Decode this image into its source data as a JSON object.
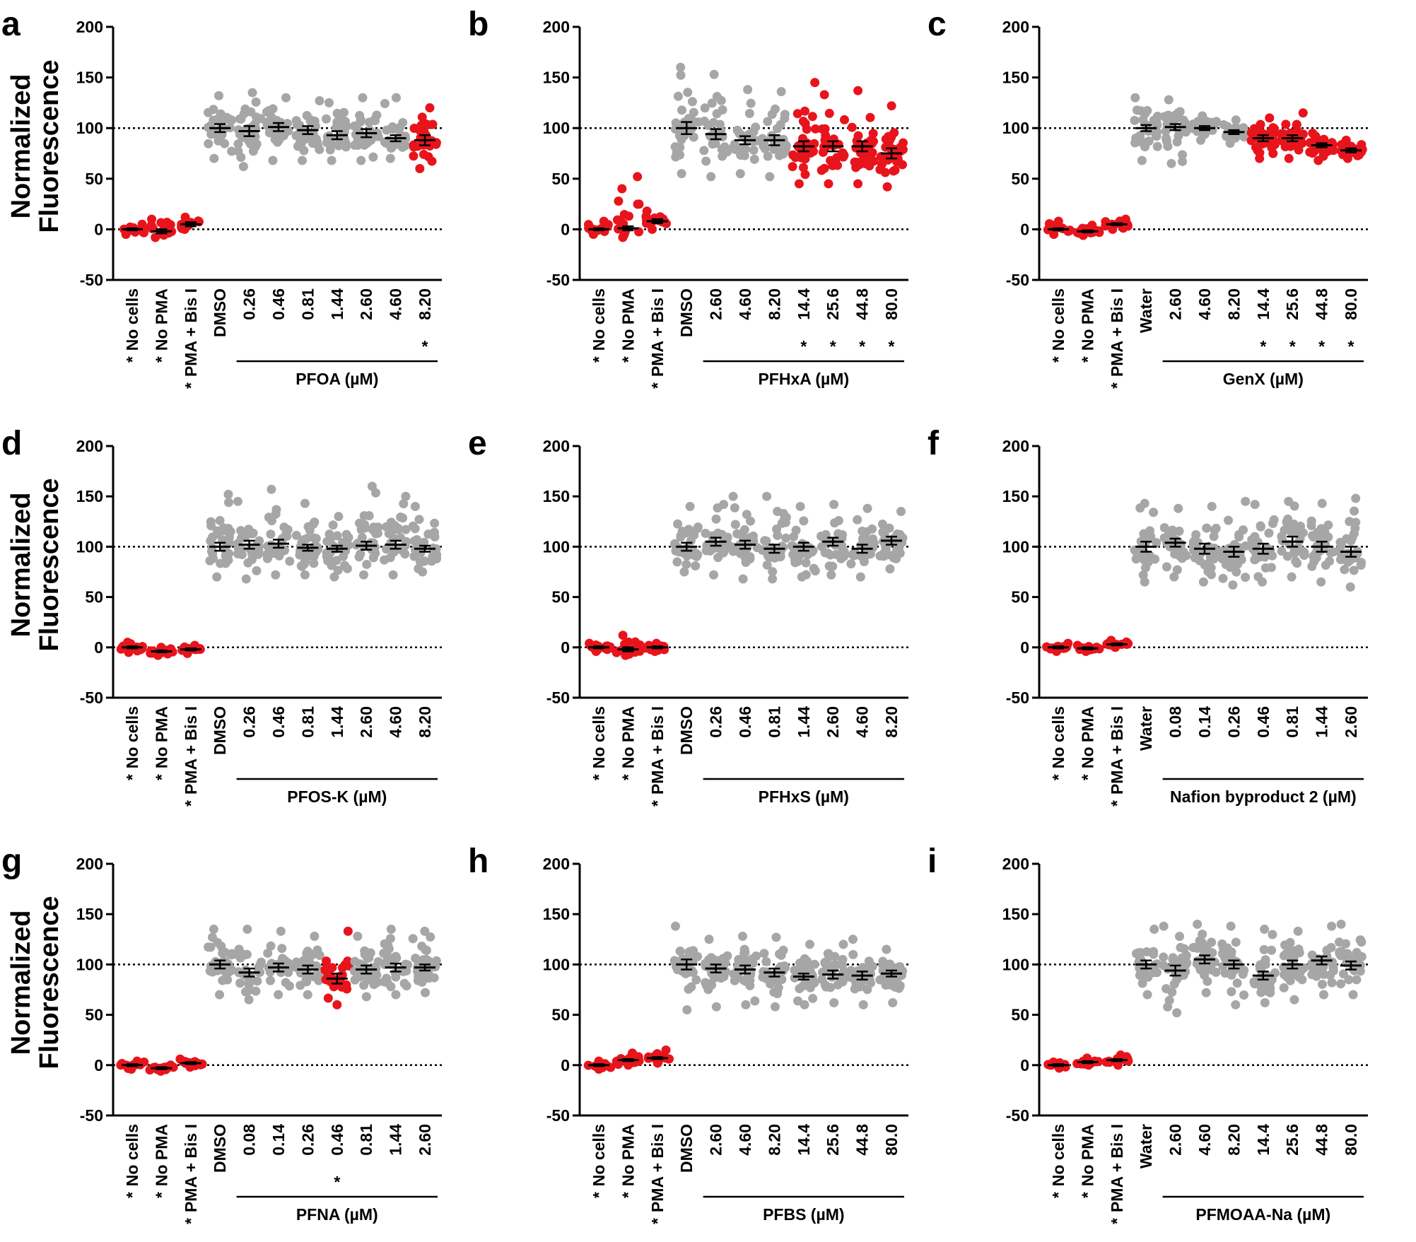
{
  "chart_data": [
    {
      "type": "scatter",
      "panel": "a",
      "title": "",
      "ylabel": [
        "Normalized",
        "Fluorescence"
      ],
      "show_ylabel": true,
      "ylim": [
        -50,
        200
      ],
      "yticks": [
        "-50",
        "0",
        "50",
        "100",
        "150",
        "200"
      ],
      "reflines": [
        0,
        100
      ],
      "group_label": "PFOA (µM)",
      "categories": [
        "No cells",
        "No PMA",
        "PMA + Bis I",
        "DMSO",
        "0.26",
        "0.46",
        "0.81",
        "1.44",
        "2.60",
        "4.60",
        "8.20"
      ],
      "significant": [
        true,
        true,
        true,
        false,
        false,
        false,
        false,
        false,
        false,
        false,
        true
      ],
      "red_points": [
        true,
        true,
        true,
        false,
        false,
        false,
        false,
        false,
        false,
        false,
        true
      ],
      "means": [
        0,
        -2,
        5,
        100,
        97,
        101,
        98,
        93,
        95,
        90,
        88
      ],
      "mins": [
        -5,
        -8,
        0,
        70,
        62,
        68,
        68,
        68,
        68,
        70,
        60
      ],
      "maxs": [
        5,
        10,
        12,
        132,
        135,
        130,
        127,
        125,
        130,
        130,
        120
      ],
      "sems": [
        1,
        2,
        2,
        4,
        5,
        4,
        4,
        4,
        4,
        3,
        5
      ]
    },
    {
      "type": "scatter",
      "panel": "b",
      "title": "",
      "ylabel": [
        "Normalized",
        "Fluorescence"
      ],
      "show_ylabel": false,
      "ylim": [
        -50,
        200
      ],
      "yticks": [
        "-50",
        "0",
        "50",
        "100",
        "150",
        "200"
      ],
      "reflines": [
        0,
        100
      ],
      "group_label": "PFHxA (µM)",
      "categories": [
        "No cells",
        "No PMA",
        "PMA + Bis I",
        "DMSO",
        "2.60",
        "4.60",
        "8.20",
        "14.4",
        "25.6",
        "44.8",
        "80.0"
      ],
      "significant": [
        true,
        true,
        true,
        false,
        false,
        false,
        false,
        true,
        true,
        true,
        true
      ],
      "red_points": [
        true,
        true,
        true,
        false,
        false,
        false,
        false,
        true,
        true,
        true,
        true
      ],
      "means": [
        0,
        1,
        8,
        100,
        94,
        88,
        88,
        82,
        82,
        82,
        75
      ],
      "mins": [
        -5,
        -8,
        0,
        55,
        52,
        55,
        52,
        45,
        45,
        45,
        42
      ],
      "maxs": [
        8,
        52,
        18,
        160,
        153,
        138,
        136,
        145,
        133,
        137,
        122
      ],
      "sems": [
        1,
        2,
        2,
        6,
        5,
        4,
        5,
        5,
        5,
        5,
        5
      ]
    },
    {
      "type": "scatter",
      "panel": "c",
      "title": "",
      "ylabel": [
        "Normalized",
        "Fluorescence"
      ],
      "show_ylabel": false,
      "ylim": [
        -50,
        200
      ],
      "yticks": [
        "-50",
        "0",
        "50",
        "100",
        "150",
        "200"
      ],
      "reflines": [
        0,
        100
      ],
      "group_label": "GenX (µM)",
      "categories": [
        "No cells",
        "No PMA",
        "PMA + Bis I",
        "Water",
        "2.60",
        "4.60",
        "8.20",
        "14.4",
        "25.6",
        "44.8",
        "80.0"
      ],
      "significant": [
        true,
        true,
        true,
        false,
        false,
        false,
        false,
        true,
        true,
        true,
        true
      ],
      "red_points": [
        true,
        true,
        true,
        false,
        false,
        false,
        false,
        true,
        true,
        true,
        true
      ],
      "means": [
        0,
        -2,
        5,
        100,
        101,
        100,
        96,
        90,
        90,
        83,
        78
      ],
      "mins": [
        -5,
        -6,
        0,
        68,
        65,
        88,
        85,
        70,
        70,
        68,
        70
      ],
      "maxs": [
        8,
        4,
        10,
        130,
        128,
        112,
        108,
        110,
        115,
        95,
        88
      ],
      "sems": [
        1,
        1,
        1,
        3,
        3,
        2,
        2,
        3,
        3,
        2,
        2
      ]
    },
    {
      "type": "scatter",
      "panel": "d",
      "title": "",
      "ylabel": [
        "Normalized",
        "Fluorescence"
      ],
      "show_ylabel": true,
      "ylim": [
        -50,
        200
      ],
      "yticks": [
        "-50",
        "0",
        "50",
        "100",
        "150",
        "200"
      ],
      "reflines": [
        0,
        100
      ],
      "group_label": "PFOS-K (µM)",
      "categories": [
        "No cells",
        "No PMA",
        "PMA + Bis I",
        "DMSO",
        "0.26",
        "0.46",
        "0.81",
        "1.44",
        "2.60",
        "4.60",
        "8.20"
      ],
      "significant": [
        true,
        true,
        true,
        false,
        false,
        false,
        false,
        false,
        false,
        false,
        false
      ],
      "red_points": [
        true,
        true,
        true,
        false,
        false,
        false,
        false,
        false,
        false,
        false,
        false
      ],
      "means": [
        0,
        -4,
        -2,
        100,
        102,
        103,
        99,
        98,
        101,
        102,
        98
      ],
      "mins": [
        -5,
        -8,
        -6,
        70,
        68,
        72,
        72,
        70,
        72,
        72,
        75
      ],
      "maxs": [
        5,
        0,
        2,
        152,
        145,
        157,
        143,
        130,
        160,
        150,
        140
      ],
      "sems": [
        1,
        1,
        1,
        4,
        4,
        4,
        3,
        3,
        4,
        4,
        3
      ]
    },
    {
      "type": "scatter",
      "panel": "e",
      "title": "",
      "ylabel": [
        "Normalized",
        "Fluorescence"
      ],
      "show_ylabel": false,
      "ylim": [
        -50,
        200
      ],
      "yticks": [
        "-50",
        "0",
        "50",
        "100",
        "150",
        "200"
      ],
      "reflines": [
        0,
        100
      ],
      "group_label": "PFHxS (µM)",
      "categories": [
        "No cells",
        "No PMA",
        "PMA + Bis I",
        "DMSO",
        "0.26",
        "0.46",
        "0.81",
        "1.44",
        "2.60",
        "4.60",
        "8.20"
      ],
      "significant": [
        true,
        true,
        true,
        false,
        false,
        false,
        false,
        false,
        false,
        false,
        false
      ],
      "red_points": [
        true,
        true,
        true,
        false,
        false,
        false,
        false,
        false,
        false,
        false,
        false
      ],
      "means": [
        0,
        -2,
        0,
        100,
        105,
        102,
        98,
        100,
        105,
        98,
        106
      ],
      "mins": [
        -4,
        -8,
        -4,
        75,
        72,
        68,
        68,
        70,
        72,
        70,
        78
      ],
      "maxs": [
        4,
        12,
        4,
        140,
        142,
        150,
        150,
        140,
        142,
        138,
        135
      ],
      "sems": [
        1,
        2,
        1,
        4,
        4,
        4,
        4,
        4,
        4,
        4,
        4
      ]
    },
    {
      "type": "scatter",
      "panel": "f",
      "title": "",
      "ylabel": [
        "Normalized",
        "Fluorescence"
      ],
      "show_ylabel": false,
      "ylim": [
        -50,
        200
      ],
      "yticks": [
        "-50",
        "0",
        "50",
        "100",
        "150",
        "200"
      ],
      "reflines": [
        0,
        100
      ],
      "group_label": "Nafion byproduct 2 (µM)",
      "categories": [
        "No cells",
        "No PMA",
        "PMA + Bis I",
        "Water",
        "0.08",
        "0.14",
        "0.26",
        "0.46",
        "0.81",
        "1.44",
        "2.60"
      ],
      "significant": [
        true,
        true,
        true,
        false,
        false,
        false,
        false,
        false,
        false,
        false,
        false
      ],
      "red_points": [
        true,
        true,
        true,
        false,
        false,
        false,
        false,
        false,
        false,
        false,
        false
      ],
      "means": [
        0,
        -1,
        3,
        100,
        104,
        98,
        95,
        98,
        105,
        100,
        95
      ],
      "mins": [
        -4,
        -4,
        0,
        65,
        70,
        65,
        62,
        65,
        70,
        65,
        60
      ],
      "maxs": [
        4,
        2,
        7,
        143,
        138,
        140,
        145,
        142,
        145,
        143,
        148
      ],
      "sems": [
        1,
        1,
        1,
        5,
        4,
        5,
        5,
        5,
        5,
        5,
        5
      ]
    },
    {
      "type": "scatter",
      "panel": "g",
      "title": "",
      "ylabel": [
        "Normalized",
        "Fluorescence"
      ],
      "show_ylabel": true,
      "ylim": [
        -50,
        200
      ],
      "yticks": [
        "-50",
        "0",
        "50",
        "100",
        "150",
        "200"
      ],
      "reflines": [
        0,
        100
      ],
      "group_label": "PFNA (µM)",
      "categories": [
        "No cells",
        "No PMA",
        "PMA + Bis I",
        "DMSO",
        "0.08",
        "0.14",
        "0.26",
        "0.46",
        "0.81",
        "1.44",
        "2.60"
      ],
      "significant": [
        true,
        true,
        true,
        false,
        false,
        false,
        false,
        true,
        false,
        false,
        false
      ],
      "red_points": [
        true,
        true,
        true,
        false,
        false,
        false,
        false,
        true,
        false,
        false,
        false
      ],
      "means": [
        0,
        -3,
        2,
        100,
        92,
        97,
        95,
        86,
        95,
        97,
        97
      ],
      "mins": [
        -4,
        -6,
        -2,
        70,
        65,
        70,
        70,
        60,
        68,
        70,
        72
      ],
      "maxs": [
        4,
        0,
        6,
        135,
        135,
        133,
        128,
        133,
        128,
        135,
        133
      ],
      "sems": [
        1,
        1,
        1,
        4,
        4,
        4,
        4,
        5,
        4,
        4,
        3
      ]
    },
    {
      "type": "scatter",
      "panel": "h",
      "title": "",
      "ylabel": [
        "Normalized",
        "Fluorescence"
      ],
      "show_ylabel": false,
      "ylim": [
        -50,
        200
      ],
      "yticks": [
        "-50",
        "0",
        "50",
        "100",
        "150",
        "200"
      ],
      "reflines": [
        0,
        100
      ],
      "group_label": "PFBS (µM)",
      "categories": [
        "No cells",
        "No PMA",
        "PMA + Bis I",
        "DMSO",
        "2.60",
        "4.60",
        "8.20",
        "14.4",
        "25.6",
        "44.8",
        "80.0"
      ],
      "significant": [
        true,
        true,
        true,
        false,
        false,
        false,
        false,
        false,
        false,
        false,
        false
      ],
      "red_points": [
        true,
        true,
        true,
        false,
        false,
        false,
        false,
        false,
        false,
        false,
        false
      ],
      "means": [
        0,
        5,
        7,
        100,
        96,
        95,
        92,
        88,
        90,
        89,
        91
      ],
      "mins": [
        -4,
        0,
        2,
        55,
        58,
        60,
        58,
        60,
        62,
        60,
        62
      ],
      "maxs": [
        4,
        12,
        15,
        138,
        125,
        128,
        127,
        120,
        120,
        125,
        115
      ],
      "sems": [
        1,
        1,
        1,
        5,
        4,
        4,
        4,
        3,
        4,
        4,
        3
      ]
    },
    {
      "type": "scatter",
      "panel": "i",
      "title": "",
      "ylabel": [
        "Normalized",
        "Fluorescence"
      ],
      "show_ylabel": false,
      "ylim": [
        -50,
        200
      ],
      "yticks": [
        "-50",
        "0",
        "50",
        "100",
        "150",
        "200"
      ],
      "reflines": [
        0,
        100
      ],
      "group_label": "PFMOAA-Na (µM)",
      "categories": [
        "No cells",
        "No PMA",
        "PMA + Bis I",
        "Water",
        "2.60",
        "4.60",
        "8.20",
        "14.4",
        "25.6",
        "44.8",
        "80.0"
      ],
      "significant": [
        true,
        true,
        true,
        false,
        false,
        false,
        false,
        false,
        false,
        false,
        false
      ],
      "red_points": [
        true,
        true,
        true,
        false,
        false,
        false,
        false,
        false,
        false,
        false,
        false
      ],
      "means": [
        0,
        3,
        5,
        100,
        94,
        105,
        100,
        89,
        100,
        104,
        99
      ],
      "mins": [
        -3,
        0,
        0,
        70,
        52,
        72,
        60,
        62,
        65,
        70,
        70
      ],
      "maxs": [
        3,
        7,
        10,
        135,
        138,
        140,
        138,
        135,
        133,
        138,
        140
      ],
      "sems": [
        1,
        1,
        1,
        4,
        5,
        4,
        4,
        4,
        4,
        4,
        4
      ]
    }
  ],
  "colors": {
    "significant": "#e8141c",
    "nonsignificant": "#a6a6a6",
    "axis": "#000000"
  }
}
